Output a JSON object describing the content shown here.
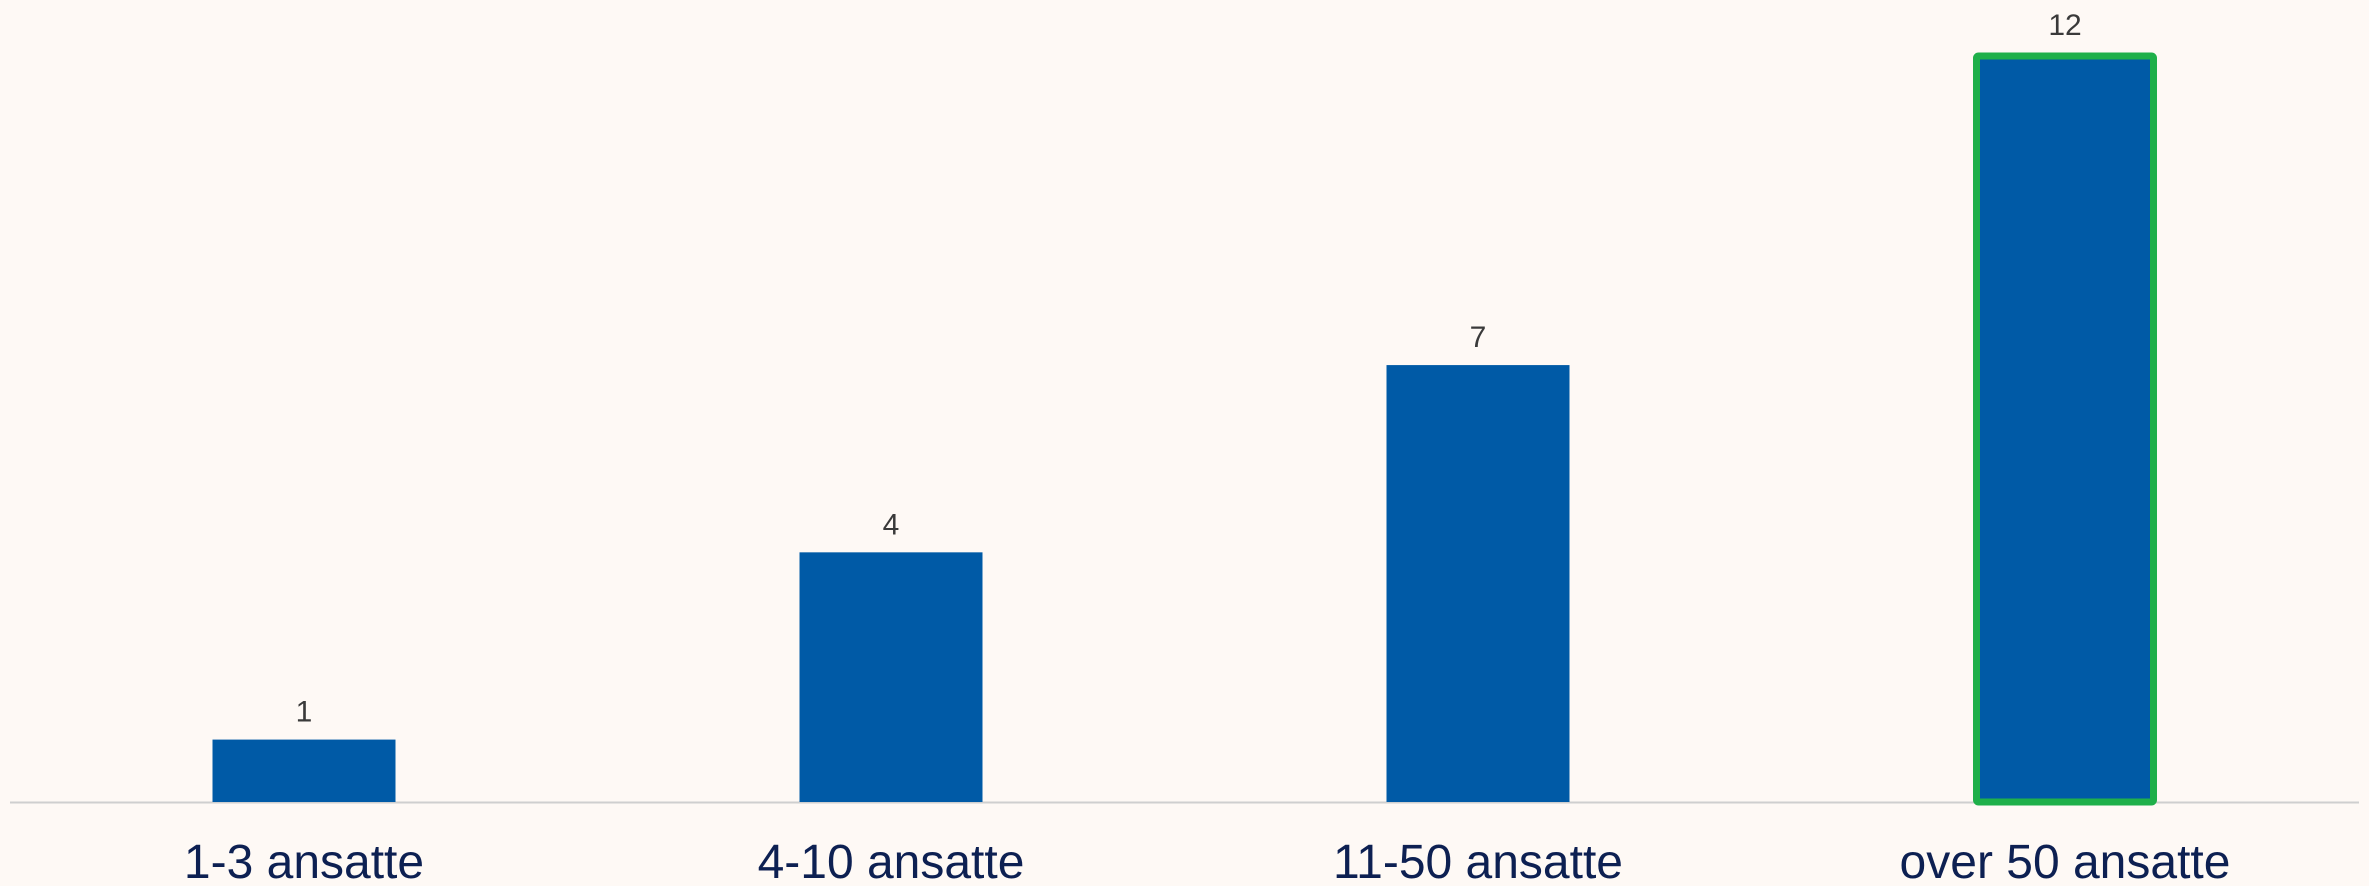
{
  "chart_data": {
    "type": "bar",
    "title": "",
    "xlabel": "",
    "ylabel": "",
    "categories": [
      "1-3 ansatte",
      "4-10 ansatte",
      "11-50 ansatte",
      "over 50 ansatte"
    ],
    "values": [
      1,
      4,
      7,
      12
    ],
    "value_labels": [
      "1",
      "4",
      "7",
      "12"
    ],
    "ylim": [
      0,
      12
    ],
    "grid": false,
    "legend": "none",
    "highlighted_category": "over 50 ansatte",
    "colors": {
      "bar": "#005aa6",
      "highlight_border": "#1fb04a",
      "baseline": "#cfcfcf",
      "background": "#fef9f5",
      "category_text": "#0d2052",
      "value_text": "#3a3a3a"
    }
  }
}
